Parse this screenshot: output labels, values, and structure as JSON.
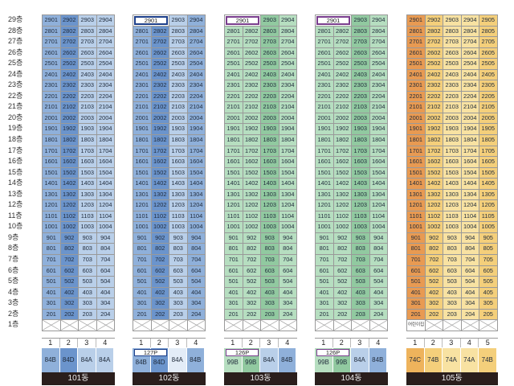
{
  "floors": [
    "29층",
    "28층",
    "27층",
    "26층",
    "25층",
    "24층",
    "23층",
    "22층",
    "21층",
    "20층",
    "19층",
    "18층",
    "17층",
    "16층",
    "15층",
    "14층",
    "13층",
    "12층",
    "11층",
    "10층",
    "9층",
    "8층",
    "7층",
    "6층",
    "5층",
    "4층",
    "3층",
    "2층",
    "1층"
  ],
  "buildings": [
    {
      "name": "101동",
      "line_numbers": [
        "1",
        "2",
        "3",
        "4"
      ],
      "unit_types": [
        "84B",
        "84D",
        "84A",
        "84A"
      ],
      "pilotis_label": "",
      "top_combined_unit": "",
      "column_styles": [
        "c-b2",
        "c-b3",
        "c-b1",
        "c-b1"
      ],
      "type_styles": [
        "c-b2",
        "c-b3",
        "c-b1",
        "c-b1"
      ],
      "accent": "#2b4e9c",
      "units": [
        [
          "2901",
          "2902",
          "2903",
          "2904"
        ],
        [
          "2801",
          "2802",
          "2803",
          "2804"
        ],
        [
          "2701",
          "2702",
          "2703",
          "2704"
        ],
        [
          "2601",
          "2602",
          "2603",
          "2604"
        ],
        [
          "2501",
          "2502",
          "2503",
          "2504"
        ],
        [
          "2401",
          "2402",
          "2403",
          "2404"
        ],
        [
          "2301",
          "2302",
          "2303",
          "2304"
        ],
        [
          "2201",
          "2202",
          "2203",
          "2204"
        ],
        [
          "2101",
          "2102",
          "2103",
          "2104"
        ],
        [
          "2001",
          "2002",
          "2003",
          "2004"
        ],
        [
          "1901",
          "1902",
          "1903",
          "1904"
        ],
        [
          "1801",
          "1802",
          "1803",
          "1804"
        ],
        [
          "1701",
          "1702",
          "1703",
          "1704"
        ],
        [
          "1601",
          "1602",
          "1603",
          "1604"
        ],
        [
          "1501",
          "1502",
          "1503",
          "1504"
        ],
        [
          "1401",
          "1402",
          "1403",
          "1404"
        ],
        [
          "1301",
          "1302",
          "1303",
          "1304"
        ],
        [
          "1201",
          "1202",
          "1203",
          "1204"
        ],
        [
          "1101",
          "1102",
          "1103",
          "1104"
        ],
        [
          "1001",
          "1002",
          "1003",
          "1004"
        ],
        [
          "901",
          "902",
          "903",
          "904"
        ],
        [
          "801",
          "802",
          "803",
          "804"
        ],
        [
          "701",
          "702",
          "703",
          "704"
        ],
        [
          "601",
          "602",
          "603",
          "604"
        ],
        [
          "501",
          "502",
          "503",
          "504"
        ],
        [
          "401",
          "402",
          "403",
          "404"
        ],
        [
          "301",
          "302",
          "303",
          "304"
        ],
        [
          "201",
          "202",
          "203",
          "204"
        ]
      ]
    },
    {
      "name": "102동",
      "line_numbers": [
        "1",
        "2",
        "3",
        "4"
      ],
      "unit_types": [
        "84B",
        "84D",
        "84A",
        "84B"
      ],
      "pilotis_label": "127P",
      "top_combined_unit": "2901",
      "column_styles": [
        "c-b2",
        "c-b3",
        "c-b1",
        "c-b2"
      ],
      "type_styles": [
        "c-b2",
        "c-b3",
        "c-xl",
        "c-b2"
      ],
      "accent": "#1d3f8a",
      "units": [
        [
          "2901",
          "2902",
          "2903",
          "2904"
        ],
        [
          "2801",
          "2802",
          "2803",
          "2804"
        ],
        [
          "2701",
          "2702",
          "2703",
          "2704"
        ],
        [
          "2601",
          "2602",
          "2603",
          "2604"
        ],
        [
          "2501",
          "2502",
          "2503",
          "2504"
        ],
        [
          "2401",
          "2402",
          "2403",
          "2404"
        ],
        [
          "2301",
          "2302",
          "2303",
          "2304"
        ],
        [
          "2201",
          "2202",
          "2203",
          "2204"
        ],
        [
          "2101",
          "2102",
          "2103",
          "2104"
        ],
        [
          "2001",
          "2002",
          "2003",
          "2004"
        ],
        [
          "1901",
          "1902",
          "1903",
          "1904"
        ],
        [
          "1801",
          "1802",
          "1803",
          "1804"
        ],
        [
          "1701",
          "1702",
          "1703",
          "1704"
        ],
        [
          "1601",
          "1602",
          "1603",
          "1604"
        ],
        [
          "1501",
          "1502",
          "1503",
          "1504"
        ],
        [
          "1401",
          "1402",
          "1403",
          "1404"
        ],
        [
          "1301",
          "1302",
          "1303",
          "1304"
        ],
        [
          "1201",
          "1202",
          "1203",
          "1204"
        ],
        [
          "1101",
          "1102",
          "1103",
          "1104"
        ],
        [
          "1001",
          "1002",
          "1003",
          "1004"
        ],
        [
          "901",
          "902",
          "903",
          "904"
        ],
        [
          "801",
          "802",
          "803",
          "804"
        ],
        [
          "701",
          "702",
          "703",
          "704"
        ],
        [
          "601",
          "602",
          "603",
          "604"
        ],
        [
          "501",
          "502",
          "503",
          "504"
        ],
        [
          "401",
          "402",
          "403",
          "404"
        ],
        [
          "301",
          "302",
          "303",
          "304"
        ],
        [
          "201",
          "202",
          "203",
          "204"
        ]
      ]
    },
    {
      "name": "103동",
      "line_numbers": [
        "1",
        "2",
        "3",
        "4"
      ],
      "unit_types": [
        "99B",
        "99B",
        "84A",
        "84B"
      ],
      "pilotis_label": "126P",
      "top_combined_unit": "2901",
      "column_styles": [
        "c-g1",
        "c-g1",
        "c-g2",
        "c-g1"
      ],
      "type_styles": [
        "c-g1",
        "c-g2",
        "c-b1",
        "c-b2"
      ],
      "accent": "#7a3e8e",
      "units": [
        [
          "2901",
          "2902",
          "2903",
          "2904"
        ],
        [
          "2801",
          "2802",
          "2803",
          "2804"
        ],
        [
          "2701",
          "2702",
          "2703",
          "2704"
        ],
        [
          "2601",
          "2602",
          "2603",
          "2604"
        ],
        [
          "2501",
          "2502",
          "2503",
          "2504"
        ],
        [
          "2401",
          "2402",
          "2403",
          "2404"
        ],
        [
          "2301",
          "2302",
          "2303",
          "2304"
        ],
        [
          "2201",
          "2202",
          "2203",
          "2204"
        ],
        [
          "2101",
          "2102",
          "2103",
          "2104"
        ],
        [
          "2001",
          "2002",
          "2003",
          "2004"
        ],
        [
          "1901",
          "1902",
          "1903",
          "1904"
        ],
        [
          "1801",
          "1802",
          "1803",
          "1804"
        ],
        [
          "1701",
          "1702",
          "1703",
          "1704"
        ],
        [
          "1601",
          "1602",
          "1603",
          "1604"
        ],
        [
          "1501",
          "1502",
          "1503",
          "1504"
        ],
        [
          "1401",
          "1402",
          "1403",
          "1404"
        ],
        [
          "1301",
          "1302",
          "1303",
          "1304"
        ],
        [
          "1201",
          "1202",
          "1203",
          "1204"
        ],
        [
          "1101",
          "1102",
          "1103",
          "1104"
        ],
        [
          "1001",
          "1002",
          "1003",
          "1004"
        ],
        [
          "901",
          "902",
          "903",
          "904"
        ],
        [
          "801",
          "802",
          "803",
          "804"
        ],
        [
          "701",
          "702",
          "703",
          "704"
        ],
        [
          "601",
          "602",
          "603",
          "604"
        ],
        [
          "501",
          "502",
          "503",
          "504"
        ],
        [
          "401",
          "402",
          "403",
          "404"
        ],
        [
          "301",
          "302",
          "303",
          "304"
        ],
        [
          "201",
          "202",
          "203",
          "204"
        ]
      ]
    },
    {
      "name": "104동",
      "line_numbers": [
        "1",
        "2",
        "3",
        "4"
      ],
      "unit_types": [
        "99B",
        "99B",
        "84A",
        "84B"
      ],
      "pilotis_label": "126P",
      "top_combined_unit": "2901",
      "column_styles": [
        "c-g1",
        "c-g1",
        "c-g2",
        "c-g1"
      ],
      "type_styles": [
        "c-g1",
        "c-g2",
        "c-b1",
        "c-b2"
      ],
      "accent": "#7a3e8e",
      "units": [
        [
          "2901",
          "2902",
          "2903",
          "2904"
        ],
        [
          "2801",
          "2802",
          "2803",
          "2804"
        ],
        [
          "2701",
          "2702",
          "2703",
          "2704"
        ],
        [
          "2601",
          "2602",
          "2603",
          "2604"
        ],
        [
          "2501",
          "2502",
          "2503",
          "2504"
        ],
        [
          "2401",
          "2402",
          "2403",
          "2404"
        ],
        [
          "2301",
          "2302",
          "2303",
          "2304"
        ],
        [
          "2201",
          "2202",
          "2203",
          "2204"
        ],
        [
          "2101",
          "2102",
          "2103",
          "2104"
        ],
        [
          "2001",
          "2002",
          "2003",
          "2004"
        ],
        [
          "1901",
          "1902",
          "1903",
          "1904"
        ],
        [
          "1801",
          "1802",
          "1803",
          "1804"
        ],
        [
          "1701",
          "1702",
          "1703",
          "1704"
        ],
        [
          "1601",
          "1602",
          "1603",
          "1604"
        ],
        [
          "1501",
          "1502",
          "1503",
          "1504"
        ],
        [
          "1401",
          "1402",
          "1403",
          "1404"
        ],
        [
          "1301",
          "1302",
          "1303",
          "1304"
        ],
        [
          "1201",
          "1202",
          "1203",
          "1204"
        ],
        [
          "1101",
          "1102",
          "1103",
          "1104"
        ],
        [
          "1001",
          "1002",
          "1003",
          "1004"
        ],
        [
          "901",
          "902",
          "903",
          "904"
        ],
        [
          "801",
          "802",
          "803",
          "804"
        ],
        [
          "701",
          "702",
          "703",
          "704"
        ],
        [
          "601",
          "602",
          "603",
          "604"
        ],
        [
          "501",
          "502",
          "503",
          "504"
        ],
        [
          "401",
          "402",
          "403",
          "404"
        ],
        [
          "301",
          "302",
          "303",
          "304"
        ],
        [
          "201",
          "202",
          "203",
          "204"
        ]
      ]
    },
    {
      "name": "105동",
      "line_numbers": [
        "1",
        "2",
        "3",
        "4",
        "5"
      ],
      "unit_types": [
        "74C",
        "74B",
        "74A",
        "74A",
        "74B"
      ],
      "pilotis_label": "",
      "top_combined_unit": "",
      "first_floor_note": "어린이집",
      "column_styles": [
        "c-o4",
        "c-o2",
        "c-o1",
        "c-o1",
        "c-o2"
      ],
      "type_styles": [
        "c-o3",
        "c-o2",
        "c-o1",
        "c-o1",
        "c-o2"
      ],
      "accent": "#e89a52",
      "units": [
        [
          "2901",
          "2902",
          "2903",
          "2904",
          "2905"
        ],
        [
          "2801",
          "2802",
          "2803",
          "2804",
          "2805"
        ],
        [
          "2701",
          "2702",
          "2703",
          "2704",
          "2705"
        ],
        [
          "2601",
          "2602",
          "2603",
          "2604",
          "2605"
        ],
        [
          "2501",
          "2502",
          "2503",
          "2504",
          "2505"
        ],
        [
          "2401",
          "2402",
          "2403",
          "2404",
          "2405"
        ],
        [
          "2301",
          "2302",
          "2303",
          "2304",
          "2305"
        ],
        [
          "2201",
          "2202",
          "2203",
          "2204",
          "2205"
        ],
        [
          "2101",
          "2102",
          "2103",
          "2104",
          "2105"
        ],
        [
          "2001",
          "2002",
          "2003",
          "2004",
          "2005"
        ],
        [
          "1901",
          "1902",
          "1903",
          "1904",
          "1905"
        ],
        [
          "1801",
          "1802",
          "1803",
          "1804",
          "1805"
        ],
        [
          "1701",
          "1702",
          "1703",
          "1704",
          "1705"
        ],
        [
          "1601",
          "1602",
          "1603",
          "1604",
          "1605"
        ],
        [
          "1501",
          "1502",
          "1503",
          "1504",
          "1505"
        ],
        [
          "1401",
          "1402",
          "1403",
          "1404",
          "1405"
        ],
        [
          "1301",
          "1302",
          "1303",
          "1304",
          "1305"
        ],
        [
          "1201",
          "1202",
          "1203",
          "1204",
          "1205"
        ],
        [
          "1101",
          "1102",
          "1103",
          "1104",
          "1105"
        ],
        [
          "1001",
          "1002",
          "1003",
          "1004",
          "1005"
        ],
        [
          "901",
          "902",
          "903",
          "904",
          "905"
        ],
        [
          "801",
          "802",
          "803",
          "804",
          "805"
        ],
        [
          "701",
          "702",
          "703",
          "704",
          "705"
        ],
        [
          "601",
          "602",
          "603",
          "604",
          "605"
        ],
        [
          "501",
          "502",
          "503",
          "504",
          "505"
        ],
        [
          "401",
          "402",
          "403",
          "404",
          "405"
        ],
        [
          "301",
          "302",
          "303",
          "304",
          "305"
        ],
        [
          "201",
          "202",
          "203",
          "204",
          "205"
        ]
      ]
    }
  ]
}
